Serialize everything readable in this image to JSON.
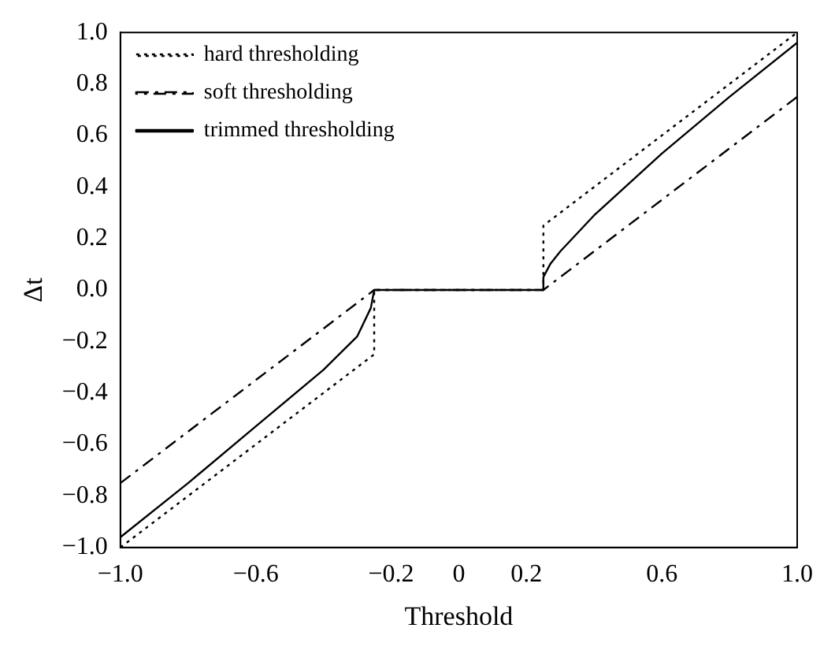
{
  "chart_data": {
    "type": "line",
    "xlabel": "Threshold",
    "ylabel": "Δt",
    "xlim": [
      -1,
      1
    ],
    "ylim": [
      -1,
      1
    ],
    "xticks": [
      {
        "value": -1,
        "label": "−1.0"
      },
      {
        "value": -0.6,
        "label": "−0.6"
      },
      {
        "value": -0.2,
        "label": "−0.2"
      },
      {
        "value": 0,
        "label": "0"
      },
      {
        "value": 0.2,
        "label": "0.2"
      },
      {
        "value": 0.6,
        "label": "0.6"
      },
      {
        "value": 1,
        "label": "1.0"
      }
    ],
    "yticks": [
      {
        "value": -1,
        "label": "−1.0"
      },
      {
        "value": -0.8,
        "label": "−0.8"
      },
      {
        "value": -0.6,
        "label": "−0.6"
      },
      {
        "value": -0.4,
        "label": "−0.4"
      },
      {
        "value": -0.2,
        "label": "−0.2"
      },
      {
        "value": 0,
        "label": "0.0"
      },
      {
        "value": 0.2,
        "label": "0.2"
      },
      {
        "value": 0.4,
        "label": "0.4"
      },
      {
        "value": 0.6,
        "label": "0.6"
      },
      {
        "value": 0.8,
        "label": "0.8"
      },
      {
        "value": 1,
        "label": "1.0"
      }
    ],
    "grid": false,
    "legend": "top left",
    "marker": "none",
    "series": [
      {
        "name": "hard thresholding",
        "color": "#000000",
        "line_style": "dotted",
        "x": [
          -1,
          -0.25,
          -0.25,
          0.25,
          0.25,
          1
        ],
        "values": [
          -1,
          -0.25,
          0,
          0,
          0.25,
          1
        ]
      },
      {
        "name": "soft thresholding",
        "color": "#000000",
        "line_style": "dashed",
        "x": [
          -1,
          -0.25,
          0.25,
          1
        ],
        "values": [
          -0.75,
          0,
          0,
          0.75
        ]
      },
      {
        "name": "trimmed thresholding",
        "color": "#000000",
        "line_style": "solid",
        "x": [
          -1,
          -0.8,
          -0.6,
          -0.4,
          -0.3,
          -0.26,
          -0.25,
          0.25,
          0.25,
          0.27,
          0.3,
          0.4,
          0.6,
          0.8,
          1
        ],
        "values": [
          -0.96,
          -0.75,
          -0.53,
          -0.31,
          -0.18,
          -0.07,
          0,
          0,
          0.05,
          0.1,
          0.15,
          0.29,
          0.53,
          0.75,
          0.96
        ]
      }
    ]
  }
}
